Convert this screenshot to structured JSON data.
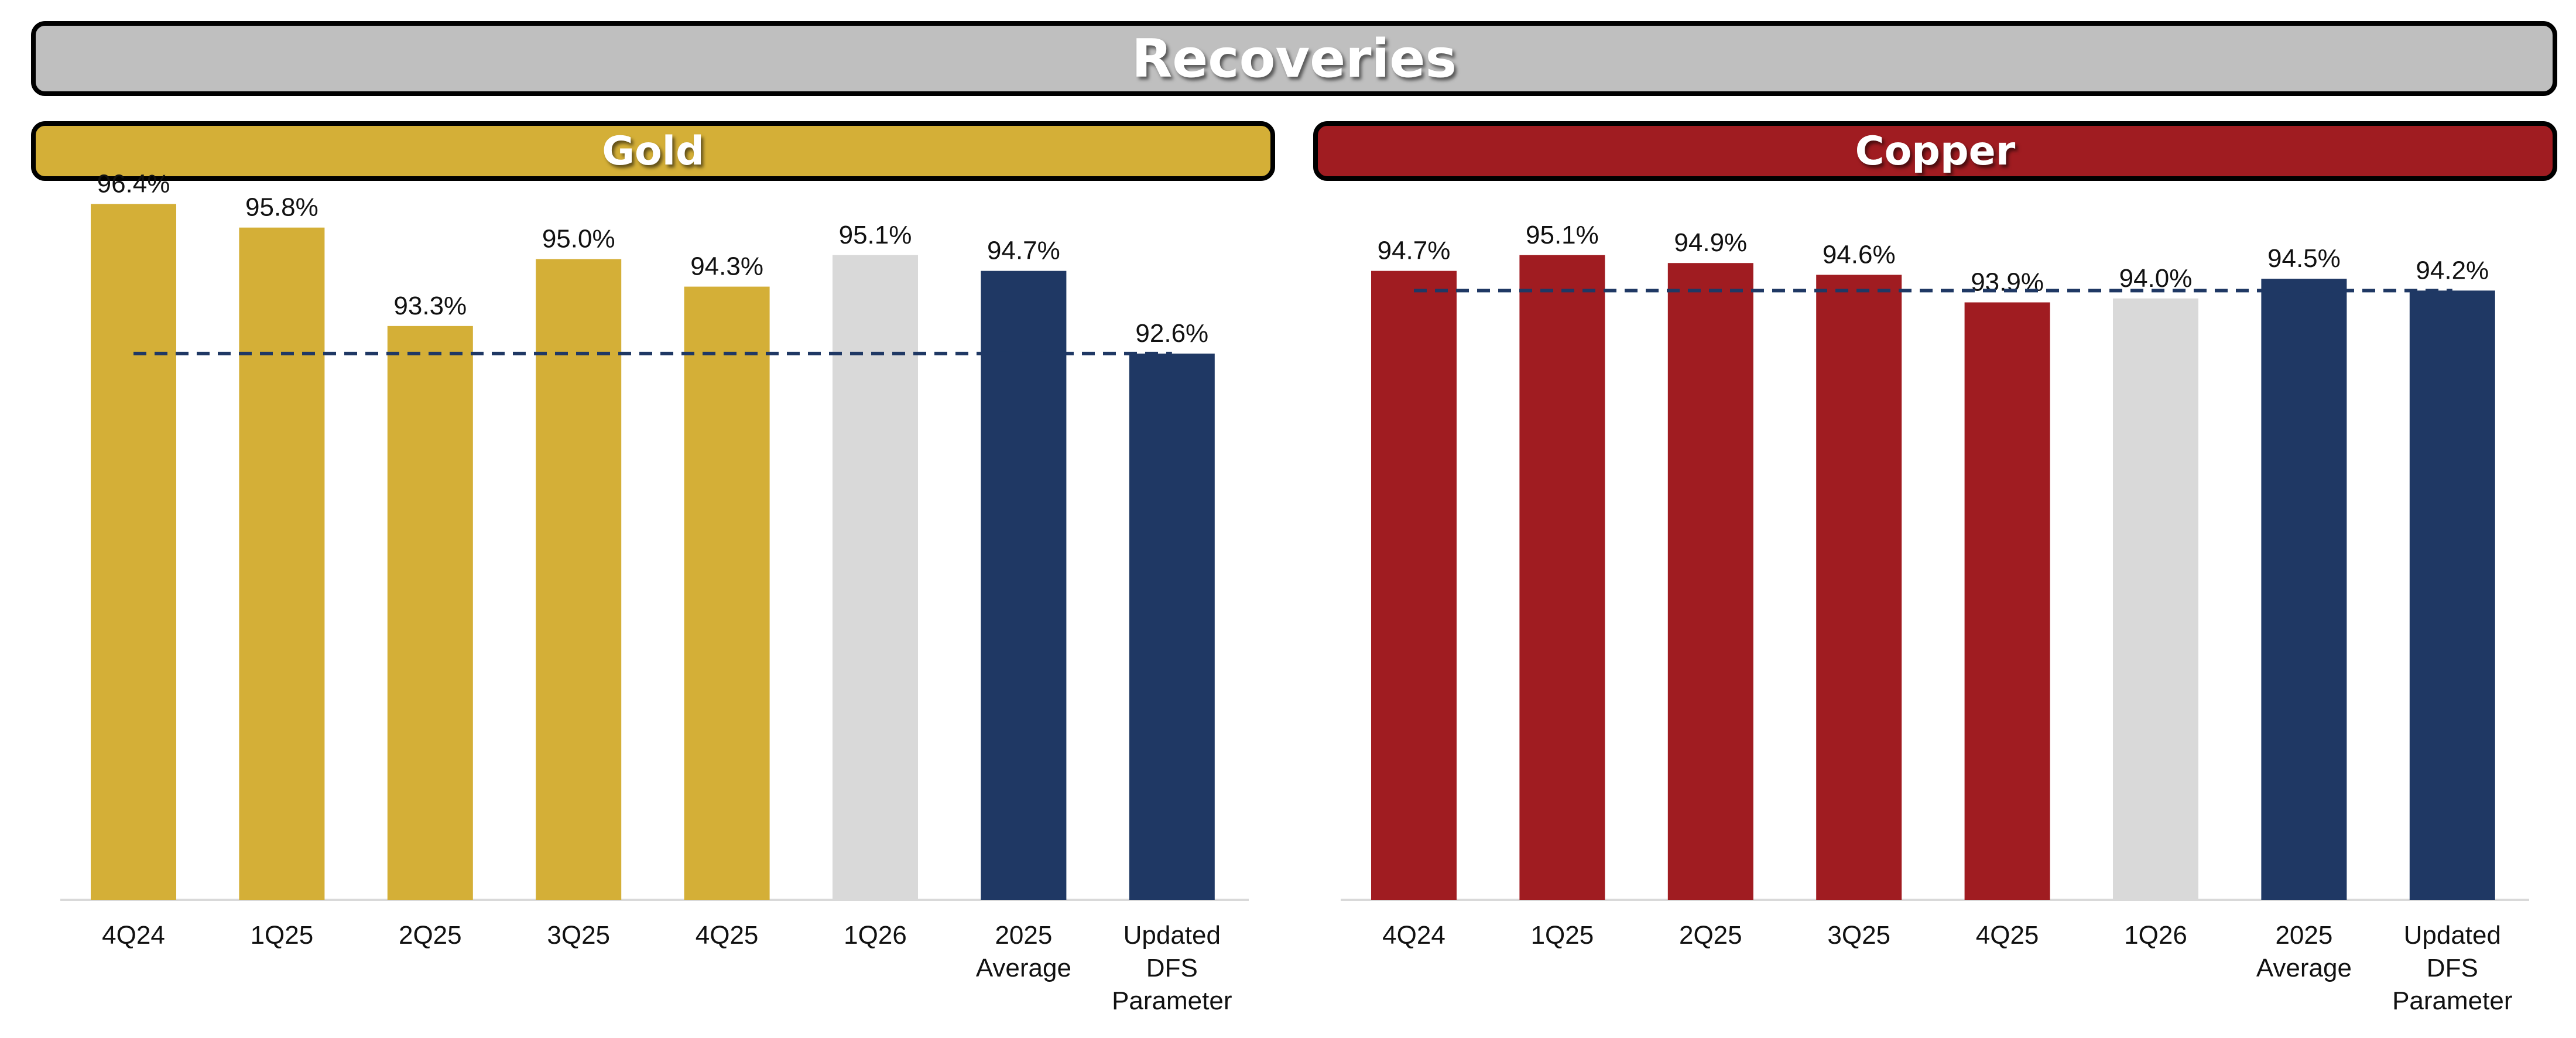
{
  "header": {
    "title": "Recoveries"
  },
  "colors": {
    "header_bg": "#bfbfbf",
    "gold": "#d4af37",
    "copper": "#a01c21",
    "current_quarter": "#d9d9d9",
    "navy": "#1f3864",
    "reference_line": "#1f3864"
  },
  "chart_data": [
    {
      "type": "bar",
      "title": "Gold",
      "categories": [
        "4Q24",
        "1Q25",
        "2Q25",
        "3Q25",
        "4Q25",
        "1Q26",
        "2025 Average",
        "Updated DFS Parameter"
      ],
      "values": [
        96.4,
        95.8,
        93.3,
        95.0,
        94.3,
        95.1,
        94.7,
        92.6
      ],
      "value_labels": [
        "96.4%",
        "95.8%",
        "93.3%",
        "95.0%",
        "94.3%",
        "95.1%",
        "94.7%",
        "92.6%"
      ],
      "bar_colors": [
        "#d4af37",
        "#d4af37",
        "#d4af37",
        "#d4af37",
        "#d4af37",
        "#d9d9d9",
        "#1f3864",
        "#1f3864"
      ],
      "reference_line": 92.6,
      "ylim": [
        79.5,
        97.0
      ],
      "xlabel": "",
      "ylabel": "",
      "grid": false
    },
    {
      "type": "bar",
      "title": "Copper",
      "categories": [
        "4Q24",
        "1Q25",
        "2Q25",
        "3Q25",
        "4Q25",
        "1Q26",
        "2025 Average",
        "Updated DFS Parameter"
      ],
      "values": [
        94.7,
        95.1,
        94.9,
        94.6,
        93.9,
        94.0,
        94.5,
        94.2
      ],
      "value_labels": [
        "94.7%",
        "95.1%",
        "94.9%",
        "94.6%",
        "93.9%",
        "94.0%",
        "94.5%",
        "94.2%"
      ],
      "bar_colors": [
        "#a01c21",
        "#a01c21",
        "#a01c21",
        "#a01c21",
        "#a01c21",
        "#d9d9d9",
        "#1f3864",
        "#1f3864"
      ],
      "reference_line": 94.2,
      "ylim": [
        79.5,
        97.0
      ],
      "xlabel": "",
      "ylabel": "",
      "grid": false
    }
  ]
}
